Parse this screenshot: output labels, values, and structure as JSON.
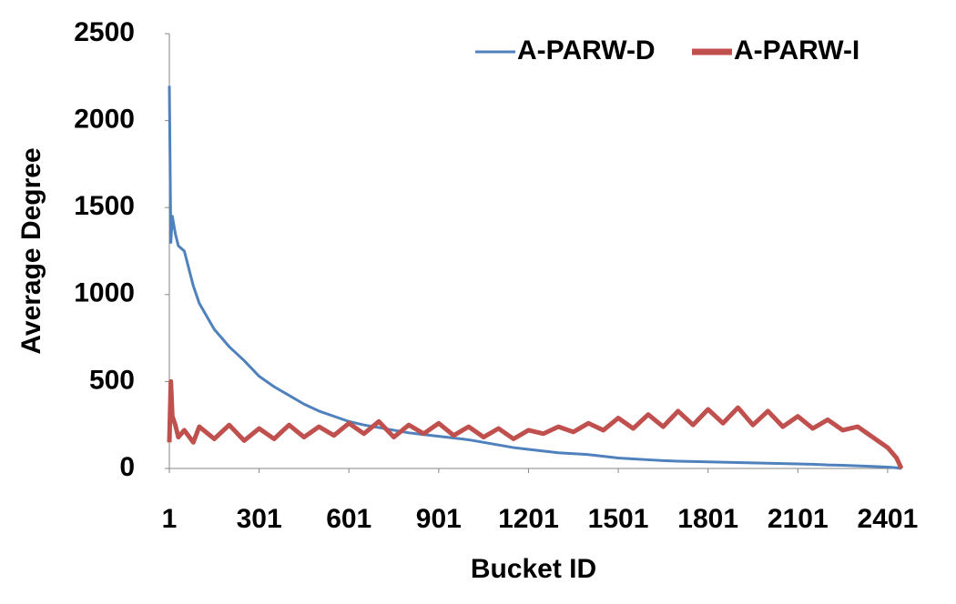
{
  "chart_data": {
    "type": "line",
    "x_label": "Bucket ID",
    "y_label": "Average Degree",
    "x": [
      1,
      6,
      11,
      21,
      31,
      51,
      81,
      101,
      151,
      201,
      251,
      301,
      351,
      401,
      451,
      501,
      551,
      601,
      651,
      701,
      751,
      801,
      851,
      901,
      951,
      1001,
      1051,
      1101,
      1151,
      1201,
      1251,
      1301,
      1351,
      1401,
      1451,
      1501,
      1551,
      1601,
      1651,
      1701,
      1751,
      1801,
      1851,
      1901,
      1951,
      2001,
      2051,
      2101,
      2151,
      2201,
      2251,
      2301,
      2351,
      2401,
      2431,
      2447
    ],
    "series": [
      {
        "name": "A-PARW-D",
        "color": "#4f81bd",
        "values": [
          2200,
          1300,
          1450,
          1350,
          1280,
          1250,
          1050,
          950,
          800,
          700,
          620,
          530,
          470,
          420,
          370,
          330,
          300,
          270,
          250,
          235,
          220,
          205,
          195,
          185,
          175,
          165,
          150,
          135,
          120,
          110,
          100,
          90,
          85,
          80,
          70,
          60,
          55,
          50,
          45,
          42,
          40,
          38,
          36,
          34,
          32,
          30,
          28,
          26,
          24,
          20,
          18,
          15,
          12,
          8,
          4,
          0
        ]
      },
      {
        "name": "A-PARW-I",
        "color": "#c0504d",
        "values": [
          150,
          500,
          300,
          250,
          180,
          220,
          150,
          240,
          170,
          250,
          160,
          230,
          170,
          250,
          180,
          240,
          190,
          260,
          200,
          270,
          180,
          250,
          200,
          260,
          190,
          240,
          180,
          230,
          170,
          220,
          200,
          240,
          210,
          260,
          220,
          290,
          230,
          310,
          240,
          330,
          250,
          340,
          260,
          350,
          250,
          330,
          240,
          300,
          230,
          280,
          220,
          240,
          180,
          120,
          60,
          0
        ]
      }
    ],
    "xlim": [
      1,
      2450
    ],
    "ylim": [
      0,
      2500
    ],
    "xticks": [
      1,
      301,
      601,
      901,
      1201,
      1501,
      1801,
      2101,
      2401
    ],
    "yticks": [
      0,
      500,
      1000,
      1500,
      2000,
      2500
    ],
    "grid": false,
    "legend": "top-right"
  }
}
